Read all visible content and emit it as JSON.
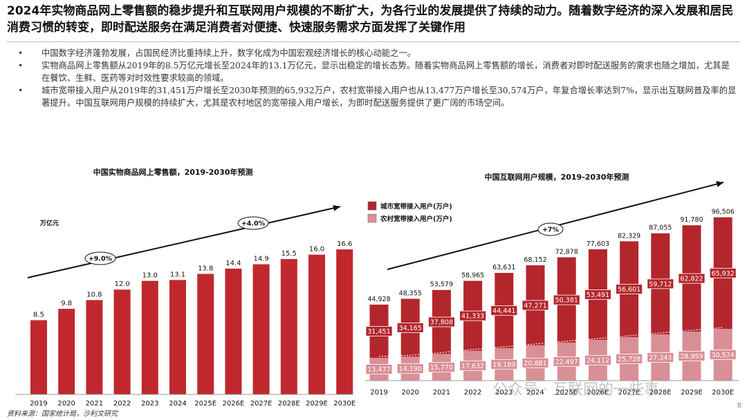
{
  "headline": "2024年实物商品网上零售额的稳步提升和互联网用户规模的不断扩大，为各行业的发展提供了持续的动力。随着数字经济的深入发展和居民消费习惯的转变，即时配送服务在满足消费者对便捷、快速服务需求方面发挥了关键作用",
  "bullets": [
    "中国数字经济蓬勃发展，占国民经济比重持续上升，数字化成为中国宏观经济增长的核心动能之一。",
    "实物商品网上零售额从2019年的8.5万亿元增长至2024年的13.1万亿元，显示出稳定的增长态势。随着实物商品网上零售额的增长，消费者对即时配送服务的需求也随之增加，尤其是在餐饮、生鲜、医药等对时效性要求较高的领域。",
    "城市宽带接入用户从2019年的31,451万户增长至2030年预测的65,932万户，农村宽带接入用户也从13,477万户增长至30,574万户，年复合增长率达到7%，显示出互联网普及率的显著提升。中国互联网用户规模的持续扩大，尤其是农村地区的宽带接入用户增长，为即时配送服务提供了更广阔的市场空间。"
  ],
  "bullet_symbol": "•",
  "source": "资料来源：国家统计局，沙利文研究",
  "page_number": "8",
  "watermark": "公众号 · 互联网的一些事",
  "colors": {
    "bar": "#c0282d",
    "urban": "#b3262c",
    "rural": "#d98f96",
    "arrow": "#111111"
  },
  "chart_data": [
    {
      "type": "bar",
      "title": "中国实物商品网上零售额，2019-2030年预测",
      "unit_label": "万亿元",
      "categories": [
        "2019",
        "2020",
        "2021",
        "2022",
        "2023",
        "2024",
        "2025E",
        "2026E",
        "2027E",
        "2028E",
        "2029E",
        "2030E"
      ],
      "values": [
        8.5,
        9.8,
        10.8,
        12.0,
        13.0,
        13.1,
        13.8,
        14.4,
        14.9,
        15.5,
        16.0,
        16.6
      ],
      "value_labels": [
        "8.5",
        "9.8",
        "10.8",
        "12.0",
        "13.0",
        "13.1",
        "13.8",
        "14.4",
        "14.9",
        "15.5",
        "16.0",
        "16.6"
      ],
      "annotations": [
        {
          "text": "+9.0%",
          "from": "2019",
          "to": "2024"
        },
        {
          "text": "+4.0%",
          "from": "2025E",
          "to": "2030E"
        }
      ],
      "grid": false
    },
    {
      "type": "bar",
      "stacked": true,
      "title": "中国互联网用户规模，2019-2030年预测",
      "categories": [
        "2019",
        "2020",
        "2021",
        "2022",
        "2023",
        "2024",
        "2025E",
        "2026E",
        "2027E",
        "2028E",
        "2029E",
        "2030E"
      ],
      "series": [
        {
          "name": "农村宽带接入用户(万户)",
          "values": [
            13477,
            14190,
            15770,
            17632,
            19189,
            20881,
            22497,
            24112,
            25728,
            27343,
            28959,
            30574
          ],
          "labels": [
            "13,477",
            "14,190",
            "15,770",
            "17,632",
            "19,189",
            "20,881",
            "22,497",
            "24,112",
            "25,728",
            "27,343",
            "28,959",
            "30,574"
          ]
        },
        {
          "name": "城市宽带接入用户(万户)",
          "values": [
            31451,
            34165,
            37808,
            41333,
            44441,
            47271,
            50381,
            53491,
            56601,
            59712,
            62822,
            65932
          ],
          "labels": [
            "31,451",
            "34,165",
            "37,808",
            "41,333",
            "44,441",
            "47,271",
            "50,381",
            "53,491",
            "56,601",
            "59,712",
            "62,822",
            "65,932"
          ]
        }
      ],
      "totals": [
        44928,
        48355,
        53579,
        58965,
        63631,
        68152,
        72878,
        77603,
        82329,
        87055,
        91780,
        96506
      ],
      "total_labels": [
        "44,928",
        "48,355",
        "53,579",
        "58,965",
        "63,631",
        "68,152",
        "72,878",
        "77,603",
        "82,329",
        "87,055",
        "91,780",
        "96,506"
      ],
      "legend_order": [
        "城市宽带接入用户(万户)",
        "农村宽带接入用户(万户)"
      ],
      "legend_position": "top-left",
      "annotations": [
        {
          "text": "+7%"
        }
      ],
      "grid": false
    }
  ]
}
